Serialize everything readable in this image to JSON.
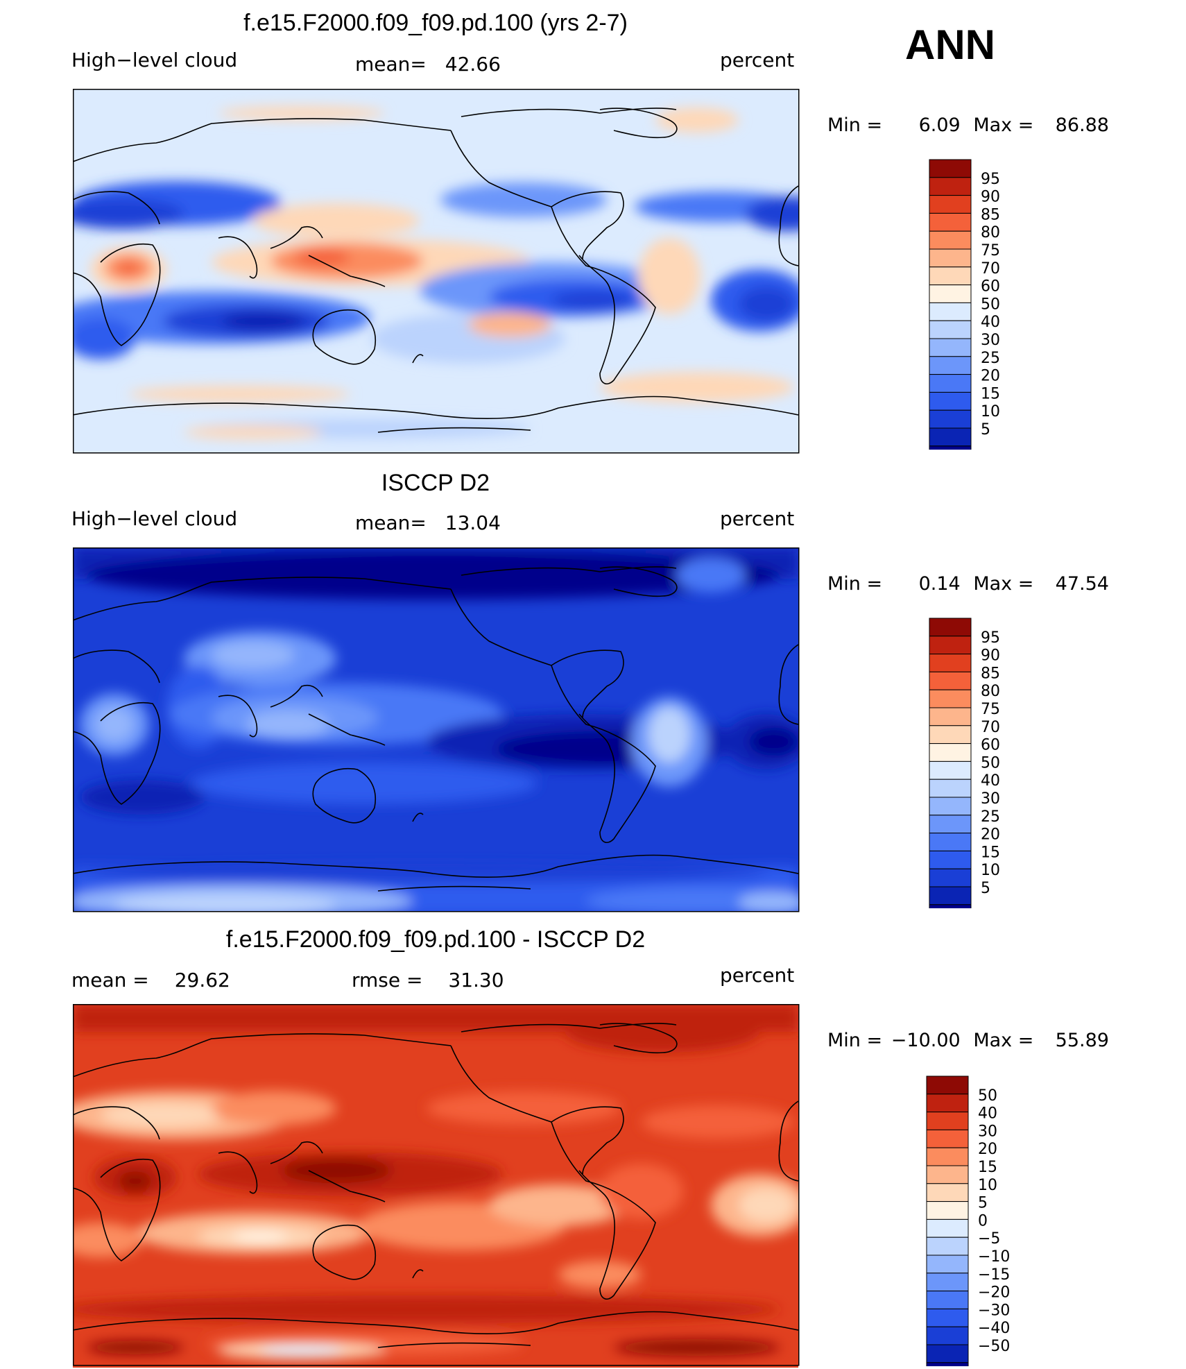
{
  "season": "ANN",
  "colors": {
    "scale_absolute": [
      "#00008B",
      "#0A24B4",
      "#1A3FD6",
      "#2E5BEE",
      "#4A78F6",
      "#6C96FA",
      "#94B6FC",
      "#BBD3FD",
      "#DCEBFE",
      "#FFF3E3",
      "#FED8B8",
      "#FDB58C",
      "#FB8C5E",
      "#F4613A",
      "#E1401F",
      "#BF2210",
      "#8E0A05"
    ],
    "scale_diff": [
      "#00008B",
      "#0A24B4",
      "#1A3FD6",
      "#2E5BEE",
      "#4A78F6",
      "#6C96FA",
      "#94B6FC",
      "#BBD3FD",
      "#DCEBFE",
      "#FFF3E3",
      "#FED8B8",
      "#FDB58C",
      "#FB8C5E",
      "#F4613A",
      "#E1401F",
      "#BF2210",
      "#8E0A05"
    ]
  },
  "chart_data": [
    {
      "type": "heatmap",
      "title": "f.e15.F2000.f09_f09.pd.100 (yrs 2-7)",
      "left_label": "High−level cloud",
      "mean_label": "mean=",
      "mean_value": "42.66",
      "units": "percent",
      "min_label": "Min =",
      "min_value": "6.09",
      "max_label": "Max =",
      "max_value": "86.88",
      "colorbar_levels": [
        "95",
        "90",
        "85",
        "80",
        "75",
        "70",
        "60",
        "50",
        "40",
        "30",
        "25",
        "20",
        "15",
        "10",
        "5"
      ],
      "field_background": "#DCEBFE"
    },
    {
      "type": "heatmap",
      "title": "ISCCP D2",
      "left_label": "High−level cloud",
      "mean_label": "mean=",
      "mean_value": "13.04",
      "units": "percent",
      "min_label": "Min =",
      "min_value": "0.14",
      "max_label": "Max =",
      "max_value": "47.54",
      "colorbar_levels": [
        "95",
        "90",
        "85",
        "80",
        "75",
        "70",
        "60",
        "50",
        "40",
        "30",
        "25",
        "20",
        "15",
        "10",
        "5"
      ],
      "field_background": "#1A3FD6"
    },
    {
      "type": "heatmap",
      "title": "f.e15.F2000.f09_f09.pd.100 - ISCCP D2",
      "left_label": "mean =",
      "left_value": "29.62",
      "rmse_label": "rmse =",
      "rmse_value": "31.30",
      "units": "percent",
      "min_label": "Min =",
      "min_value": "−10.00",
      "max_label": "Max =",
      "max_value": "55.89",
      "colorbar_levels": [
        "50",
        "40",
        "30",
        "20",
        "15",
        "10",
        "5",
        "0",
        "−5",
        "−10",
        "−15",
        "−20",
        "−30",
        "−40",
        "−50"
      ],
      "field_background": "#E1401F"
    }
  ]
}
